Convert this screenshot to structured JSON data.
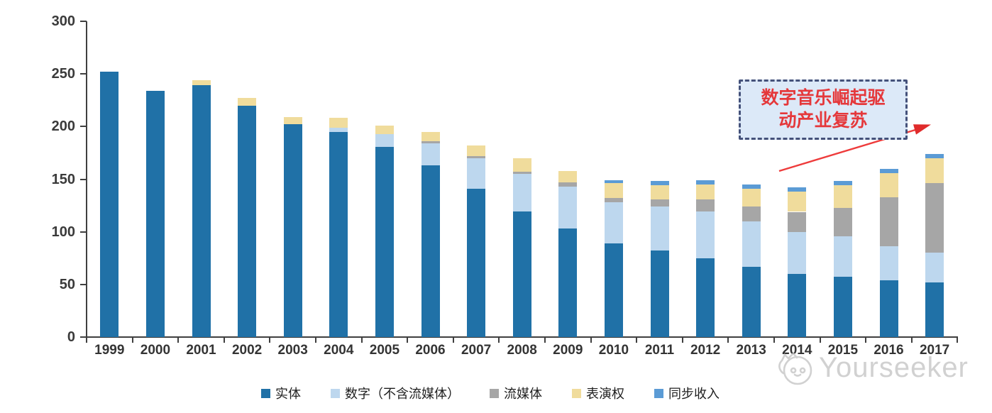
{
  "chart_data": {
    "type": "bar",
    "stacked": true,
    "title": "",
    "xlabel": "",
    "ylabel": "",
    "ylim": [
      0,
      300
    ],
    "yticks": [
      0,
      50,
      100,
      150,
      200,
      250,
      300
    ],
    "grid": false,
    "legend_position": "bottom",
    "categories": [
      "1999",
      "2000",
      "2001",
      "2002",
      "2003",
      "2004",
      "2005",
      "2006",
      "2007",
      "2008",
      "2009",
      "2010",
      "2011",
      "2012",
      "2013",
      "2014",
      "2015",
      "2016",
      "2017"
    ],
    "series": [
      {
        "name": "实体",
        "color": "#2071A7",
        "values": [
          252,
          234,
          239,
          220,
          202,
          195,
          181,
          163,
          141,
          119,
          103,
          89,
          82,
          75,
          67,
          60,
          57,
          54,
          52
        ]
      },
      {
        "name": "数字（不含流媒体）",
        "color": "#BDD7EE",
        "values": [
          0,
          0,
          0,
          0,
          0,
          4,
          12,
          21,
          29,
          36,
          40,
          39,
          42,
          44,
          43,
          40,
          39,
          32,
          28
        ]
      },
      {
        "name": "流媒体",
        "color": "#A6A6A6",
        "values": [
          0,
          0,
          0,
          0,
          0,
          0,
          0,
          2,
          2,
          2,
          4,
          4,
          7,
          12,
          14,
          19,
          27,
          47,
          66
        ]
      },
      {
        "name": "表演权",
        "color": "#F0DC9C",
        "values": [
          0,
          0,
          5,
          7,
          7,
          9,
          8,
          9,
          10,
          13,
          11,
          14,
          13,
          14,
          17,
          19,
          21,
          23,
          24
        ]
      },
      {
        "name": "同步收入",
        "color": "#5B9BD5",
        "values": [
          0,
          0,
          0,
          0,
          0,
          0,
          0,
          0,
          0,
          0,
          0,
          3,
          4,
          4,
          4,
          4,
          4,
          4,
          4
        ]
      }
    ]
  },
  "annotation": {
    "line1": "数字音乐崛起驱",
    "line2": "动产业复苏",
    "text_color": "#e5383b"
  },
  "watermark": {
    "text": "Yourseeker"
  },
  "colors": {
    "axis": "#3f3f3f",
    "annotation_border": "#44517a",
    "annotation_fill": "#dce9f8",
    "arrow": "#ee3b3b"
  }
}
